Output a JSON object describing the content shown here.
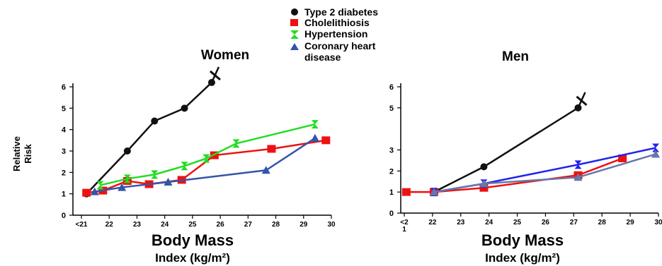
{
  "legend": {
    "items": [
      {
        "label": "Type 2 diabetes",
        "color": "#111111",
        "marker": "circle"
      },
      {
        "label": "Cholelithiosis",
        "color": "#ee1111",
        "marker": "square"
      },
      {
        "label": "Hypertension",
        "color": "#22dd22",
        "marker": "hourglass"
      },
      {
        "label": "Coronary heart disease",
        "label_line1": "Coronary heart",
        "label_line2": "disease",
        "color": "#3355aa",
        "marker": "triangle"
      }
    ]
  },
  "chart_data": [
    {
      "type": "line",
      "title": "Women",
      "ylabel_line1": "Relative",
      "ylabel_line2": "Risk",
      "xlabel_line1": "Body Mass",
      "xlabel_line2": "Index (kg/m²)",
      "x_tick_labels": [
        "<21",
        "22",
        "23",
        "24",
        "25",
        "26",
        "27",
        "28",
        "29",
        "30"
      ],
      "y_tick_labels": [
        "0",
        "1",
        "2",
        "3",
        "4",
        "5",
        "6"
      ],
      "ylim": [
        0,
        6
      ],
      "grid": false,
      "series": [
        {
          "name": "Type 2 diabetes",
          "color": "#111111",
          "marker": "circle",
          "points": [
            [
              21,
              1.0
            ],
            [
              22.5,
              3.0
            ],
            [
              23.5,
              4.4
            ],
            [
              24.6,
              5.0
            ],
            [
              25.6,
              6.2
            ]
          ],
          "break_mark": true
        },
        {
          "name": "Cholelithiosis",
          "color": "#ee1111",
          "marker": "square",
          "points": [
            [
              21,
              1.05
            ],
            [
              21.6,
              1.15
            ],
            [
              22.5,
              1.6
            ],
            [
              23.3,
              1.45
            ],
            [
              24.5,
              1.65
            ],
            [
              25.7,
              2.8
            ],
            [
              27.8,
              3.1
            ],
            [
              29.8,
              3.5
            ]
          ]
        },
        {
          "name": "Hypertension",
          "color": "#22dd22",
          "marker": "hourglass",
          "points": [
            [
              21.5,
              1.4
            ],
            [
              22.5,
              1.7
            ],
            [
              23.5,
              1.9
            ],
            [
              24.6,
              2.3
            ],
            [
              25.4,
              2.65
            ],
            [
              26.5,
              3.35
            ],
            [
              29.4,
              4.25
            ]
          ]
        },
        {
          "name": "Coronary heart disease",
          "color": "#3355aa",
          "marker": "triangle",
          "points": [
            [
              21.3,
              1.1
            ],
            [
              22.3,
              1.3
            ],
            [
              24.0,
              1.55
            ],
            [
              27.6,
              2.1
            ],
            [
              29.4,
              3.6
            ]
          ]
        }
      ]
    },
    {
      "type": "line",
      "title": "Men",
      "xlabel_line1": "Body Mass",
      "xlabel_line2": "Index (kg/m²)",
      "x_tick_labels": [
        "<2\n1",
        "22",
        "23",
        "24",
        "25",
        "26",
        "27",
        "28",
        "29",
        "30"
      ],
      "y_tick_labels": [
        "0",
        "1",
        "2",
        "3",
        "5",
        "6"
      ],
      "y_tick_values": [
        0,
        1,
        2,
        3,
        5,
        6
      ],
      "ylim": [
        0,
        6
      ],
      "grid": false,
      "series": [
        {
          "name": "Type 2 diabetes",
          "color": "#111111",
          "marker": "circle",
          "points": [
            [
              22,
              1.0
            ],
            [
              23.8,
              2.2
            ],
            [
              27.2,
              5.0
            ]
          ],
          "break_mark": true
        },
        {
          "name": "Cholelithiosis",
          "color": "#ee1111",
          "marker": "square",
          "points": [
            [
              21,
              1.0
            ],
            [
              22,
              1.0
            ],
            [
              23.8,
              1.2
            ],
            [
              27.2,
              1.8
            ],
            [
              28.8,
              2.6
            ]
          ]
        },
        {
          "name": "Hypertension",
          "color": "#2222ee",
          "marker": "hourglass",
          "points": [
            [
              22,
              1.0
            ],
            [
              23.8,
              1.4
            ],
            [
              27.2,
              2.3
            ],
            [
              30,
              3.1
            ]
          ]
        },
        {
          "name": "Coronary heart disease",
          "color": "#6677aa",
          "marker": "triangle",
          "points": [
            [
              22,
              1.0
            ],
            [
              23.8,
              1.4
            ],
            [
              27.2,
              1.7
            ],
            [
              30,
              2.8
            ]
          ]
        }
      ]
    }
  ]
}
